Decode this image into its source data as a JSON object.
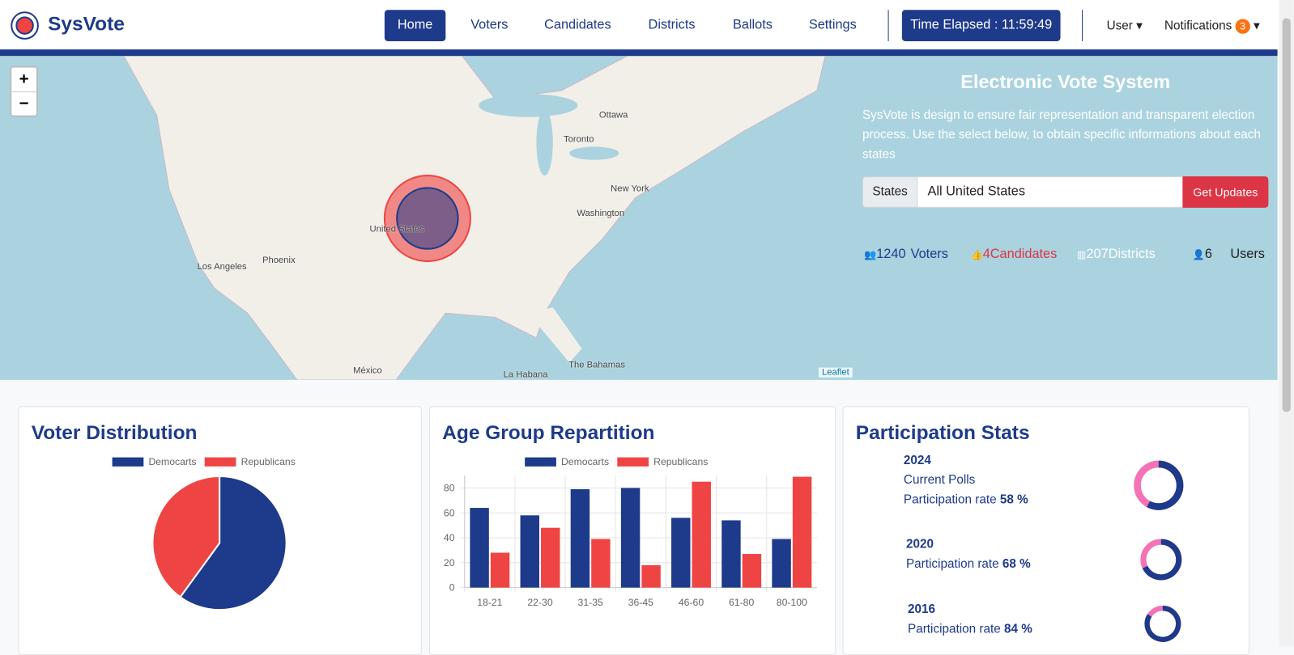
{
  "nav": {
    "brand": "SysVote",
    "links": [
      "Home",
      "Voters",
      "Candidates",
      "Districts",
      "Ballots",
      "Settings"
    ],
    "timer": "Time Elapsed : 11:59:49",
    "user": "User",
    "notifications": "Notifications",
    "notification_count": 3
  },
  "map": {
    "labels": [
      "Ottawa",
      "Toronto",
      "New York",
      "Washington",
      "United States",
      "Los Angeles",
      "Phoenix",
      "México",
      "La Habana",
      "The Bahamas"
    ],
    "zoom_in": "+",
    "zoom_out": "−",
    "attribution": "Leaflet"
  },
  "hero": {
    "title": "Electronic Vote System",
    "description": "SysVote is design to ensure fair representation and transparent election process. Use the select below, to obtain specific informations about each states",
    "select_label": "States",
    "select_value": "All United States",
    "button": "Get Updates"
  },
  "stats": [
    {
      "count": 1240,
      "label": "Voters"
    },
    {
      "count": 4,
      "label": "Candidates"
    },
    {
      "count": 207,
      "label": "Districts"
    },
    {
      "count": 6,
      "label": "Users"
    }
  ],
  "chart_data": [
    {
      "type": "pie",
      "title": "Voter Distribution",
      "categories": [
        "Democarts",
        "Republicans"
      ],
      "values": [
        60,
        40
      ],
      "colors": [
        "#1e3a8a",
        "#ef4444"
      ]
    },
    {
      "type": "bar",
      "title": "Age Group Repartition",
      "categories": [
        "18-21",
        "22-30",
        "31-35",
        "36-45",
        "46-60",
        "61-80",
        "80-100"
      ],
      "series": [
        {
          "name": "Democarts",
          "color": "#1e3a8a",
          "values": [
            64,
            58,
            79,
            80,
            56,
            54,
            39
          ]
        },
        {
          "name": "Republicans",
          "color": "#ef4444",
          "values": [
            28,
            48,
            39,
            18,
            85,
            27,
            89
          ]
        }
      ],
      "ylim": [
        0,
        90
      ],
      "yticks": [
        0,
        20,
        40,
        60,
        80
      ],
      "grid": true
    },
    {
      "type": "donut",
      "title": "Participation Stats",
      "categories": [
        "2024",
        "2020",
        "2016"
      ],
      "values": [
        58,
        68,
        84
      ],
      "value_labels": [
        "58 %",
        "68 %",
        "84 %"
      ],
      "note": "Current Polls",
      "rate_label": "Participation rate",
      "colors": [
        "#1e3a8a",
        "#f472b6"
      ]
    }
  ]
}
